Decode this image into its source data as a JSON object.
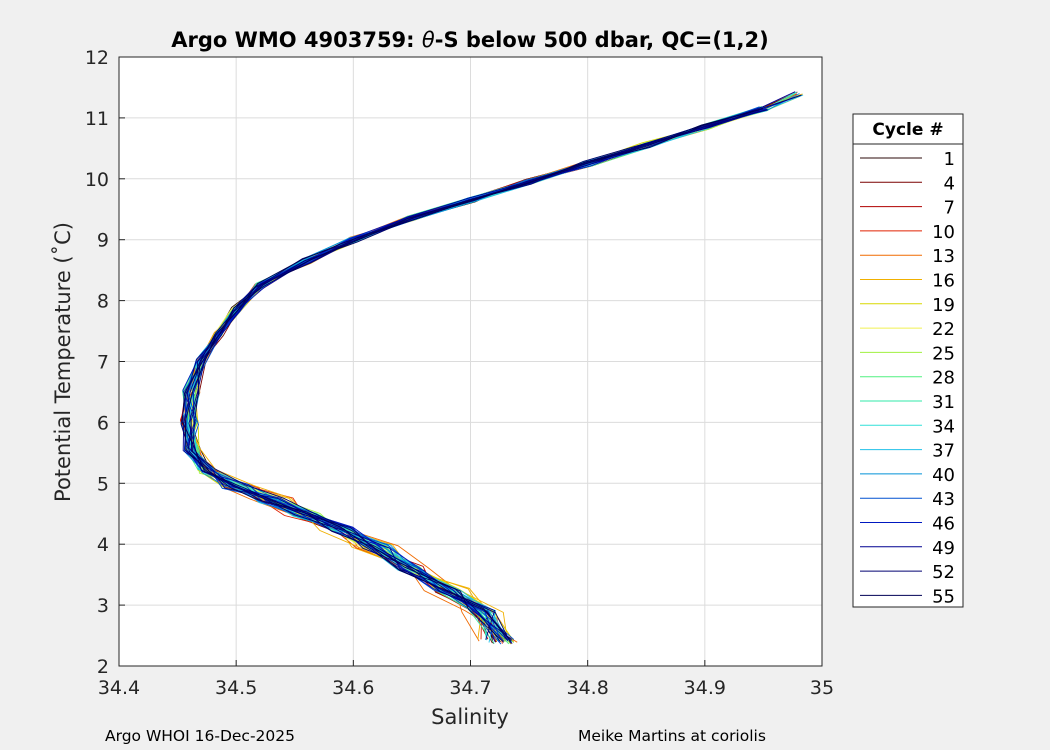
{
  "chart_data": {
    "type": "line",
    "title_prefix": "Argo WMO 4903759: ",
    "title_theta": "θ",
    "title_suffix": "-S below 500 dbar,  QC=(1,2)",
    "xlabel": "Salinity",
    "ylabel": "Potential Temperature (˚C)",
    "xlim": [
      34.4,
      35.0
    ],
    "ylim": [
      2,
      12
    ],
    "xticks": [
      "34.4",
      "34.5",
      "34.6",
      "34.7",
      "34.8",
      "34.9",
      "35"
    ],
    "yticks": [
      "2",
      "3",
      "4",
      "5",
      "6",
      "7",
      "8",
      "9",
      "10",
      "11",
      "12"
    ],
    "grid": true,
    "legend": {
      "title": "Cycle #",
      "position": "right-outside",
      "entries": [
        "1",
        "4",
        "7",
        "10",
        "13",
        "16",
        "19",
        "22",
        "25",
        "28",
        "31",
        "34",
        "37",
        "40",
        "43",
        "46",
        "49",
        "52",
        "55"
      ],
      "colors": [
        "#2b0a0a",
        "#7a0000",
        "#b00000",
        "#e02000",
        "#f06a00",
        "#f0b000",
        "#d8d800",
        "#f0f050",
        "#a0f040",
        "#50f080",
        "#30e8a8",
        "#30e0d8",
        "#20c0e8",
        "#0090d8",
        "#0050d0",
        "#0018c0",
        "#000090",
        "#000070",
        "#000055"
      ]
    },
    "series_shape": {
      "S": [
        34.98,
        34.95,
        34.9,
        34.85,
        34.8,
        34.75,
        34.7,
        34.65,
        34.6,
        34.56,
        34.52,
        34.5,
        34.485,
        34.47,
        34.462,
        34.46,
        34.462,
        34.475,
        34.5,
        34.53,
        34.56,
        34.59,
        34.62,
        34.65,
        34.68,
        34.71,
        34.725
      ],
      "T": [
        11.4,
        11.15,
        10.85,
        10.55,
        10.25,
        9.95,
        9.65,
        9.35,
        9.0,
        8.65,
        8.25,
        7.85,
        7.45,
        7.0,
        6.5,
        6.0,
        5.55,
        5.2,
        4.95,
        4.72,
        4.5,
        4.25,
        3.95,
        3.6,
        3.25,
        2.9,
        2.4
      ]
    },
    "footer_left": "Argo WHOI 16-Dec-2025",
    "footer_right": "Meike Martins at coriolis"
  }
}
